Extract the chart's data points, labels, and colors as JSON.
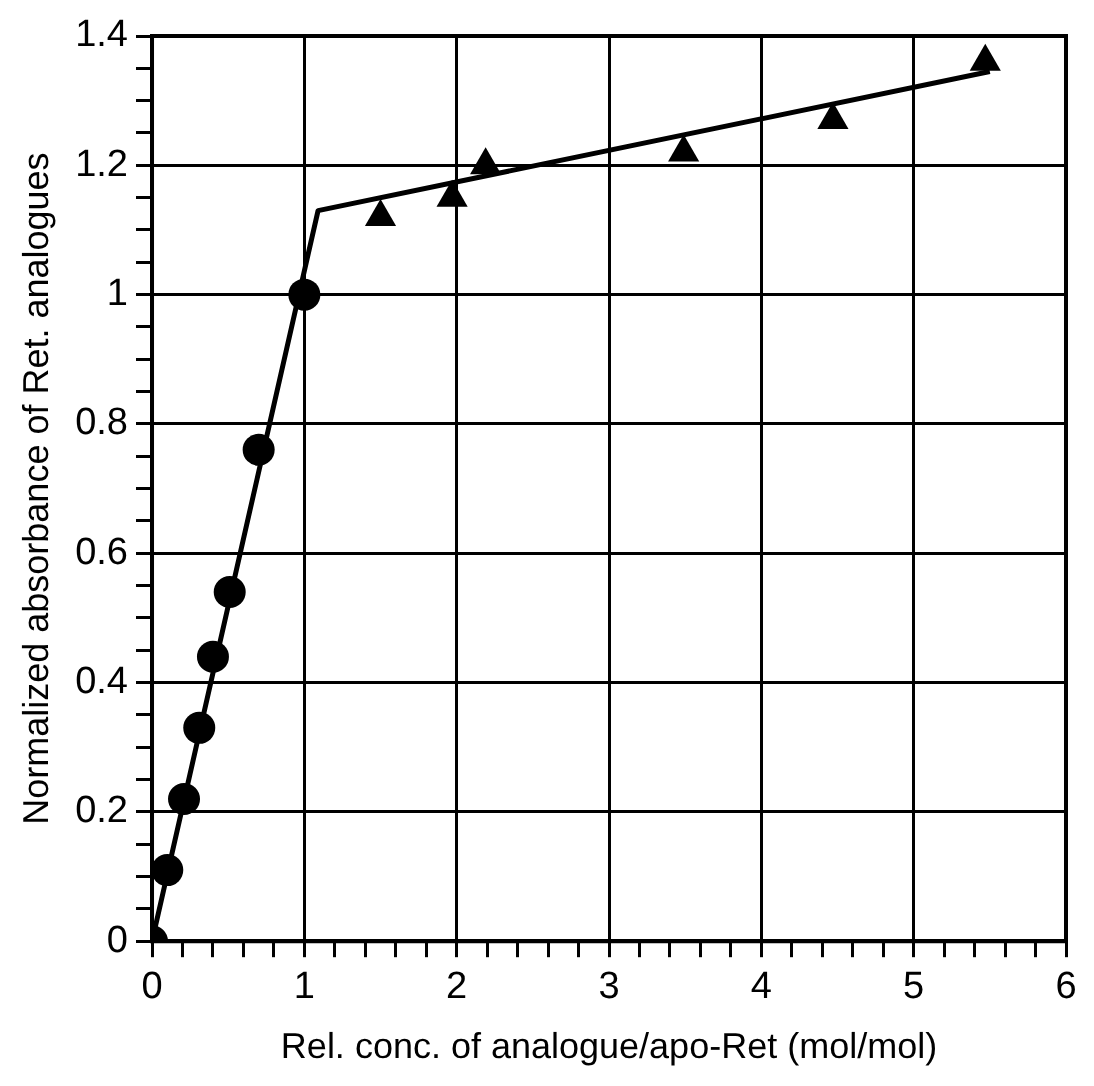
{
  "chart_data": {
    "type": "scatter",
    "xlabel": "Rel. conc. of analogue/apo-Ret (mol/mol)",
    "ylabel": "Normalized absorbance of Ret. analogues",
    "xlim": [
      0,
      6
    ],
    "ylim": [
      0,
      1.4
    ],
    "xticks": [
      0,
      {
        "value": 0.2,
        "label": null
      },
      {
        "value": 0.4,
        "label": null
      },
      {
        "value": 0.6,
        "label": null
      },
      {
        "value": 0.8,
        "label": null
      },
      1,
      {
        "value": 1.2,
        "label": null
      },
      {
        "value": 1.4,
        "label": null
      },
      {
        "value": 1.6,
        "label": null
      },
      {
        "value": 1.8,
        "label": null
      },
      2,
      {
        "value": 2.2,
        "label": null
      },
      {
        "value": 2.4,
        "label": null
      },
      {
        "value": 2.6,
        "label": null
      },
      {
        "value": 2.8,
        "label": null
      },
      3,
      {
        "value": 3.2,
        "label": null
      },
      {
        "value": 3.4,
        "label": null
      },
      {
        "value": 3.6,
        "label": null
      },
      {
        "value": 3.8,
        "label": null
      },
      4,
      {
        "value": 4.2,
        "label": null
      },
      {
        "value": 4.4,
        "label": null
      },
      {
        "value": 4.6,
        "label": null
      },
      {
        "value": 4.8,
        "label": null
      },
      5,
      {
        "value": 5.2,
        "label": null
      },
      {
        "value": 5.4,
        "label": null
      },
      {
        "value": 5.6,
        "label": null
      },
      {
        "value": 5.8,
        "label": null
      },
      6
    ],
    "yticks": [
      0,
      {
        "value": 0.05,
        "label": null
      },
      {
        "value": 0.1,
        "label": null
      },
      {
        "value": 0.15,
        "label": null
      },
      0.2,
      {
        "value": 0.25,
        "label": null
      },
      {
        "value": 0.3,
        "label": null
      },
      {
        "value": 0.35,
        "label": null
      },
      0.4,
      {
        "value": 0.45,
        "label": null
      },
      {
        "value": 0.5,
        "label": null
      },
      {
        "value": 0.55,
        "label": null
      },
      0.6,
      {
        "value": 0.65,
        "label": null
      },
      {
        "value": 0.7,
        "label": null
      },
      {
        "value": 0.75,
        "label": null
      },
      0.8,
      {
        "value": 0.85,
        "label": null
      },
      {
        "value": 0.9,
        "label": null
      },
      {
        "value": 0.95,
        "label": null
      },
      1,
      {
        "value": 1.05,
        "label": null
      },
      {
        "value": 1.1,
        "label": null
      },
      {
        "value": 1.15,
        "label": null
      },
      1.2,
      {
        "value": 1.25,
        "label": null
      },
      {
        "value": 1.3,
        "label": null
      },
      {
        "value": 1.35,
        "label": null
      },
      1.4
    ],
    "grid": true,
    "legend": false,
    "series": [
      {
        "type": "line",
        "color": "#000000",
        "marker": "none",
        "line_style": "solid",
        "x": [
          0,
          1.09,
          5.5
        ],
        "values": [
          0,
          1.13,
          1.345
        ]
      },
      {
        "color": "#000000",
        "marker": "circle",
        "x": [
          0,
          0.1,
          0.21,
          0.31,
          0.4,
          0.51,
          0.7,
          1.0
        ],
        "values": [
          0,
          0.11,
          0.22,
          0.33,
          0.44,
          0.54,
          0.76,
          1.0
        ]
      },
      {
        "color": "#000000",
        "marker": "triangle",
        "x": [
          1.5,
          1.97,
          2.19,
          3.49,
          4.47,
          5.47
        ],
        "values": [
          1.12,
          1.15,
          1.2,
          1.22,
          1.27,
          1.36
        ]
      }
    ]
  }
}
